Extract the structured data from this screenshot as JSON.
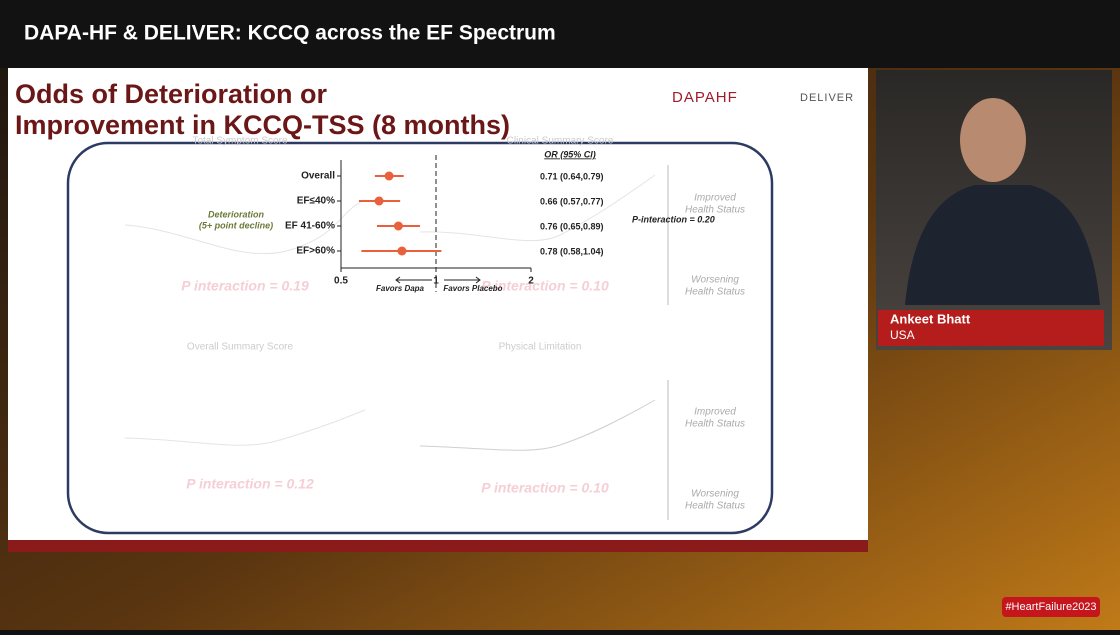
{
  "header": {
    "title": "DAPA-HF & DELIVER: KCCQ across the EF Spectrum"
  },
  "slide": {
    "title_lines": [
      "Odds of Deterioration or",
      "Improvement in KCCQ-TSS (8 months)"
    ],
    "logos": [
      "DAPAHF",
      "DELIVER"
    ],
    "background_panels": {
      "titles": [
        "Total Symptom Score",
        "Clinical Summary Score",
        "Overall Summary Score",
        "Physical Limitation"
      ],
      "improved": [
        "Improved",
        "Health Status"
      ],
      "worsening": [
        "Worsening",
        "Health Status"
      ],
      "p_values": [
        "P interaction = 0.19",
        "P interaction = 0.10",
        "P interaction = 0.12",
        "P interaction = 0.10"
      ]
    },
    "deterioration_lines": [
      "Deterioration",
      "(5+ point decline)"
    ],
    "p_interaction": "P-interaction = 0.20",
    "forest": {
      "type": "forest",
      "ci_header": "OR (95% CI)",
      "color": "#e8603c",
      "log_scale": true,
      "xlim": [
        0.5,
        2
      ],
      "xticks": [
        0.5,
        1,
        2
      ],
      "reference": 1,
      "left_label": "Favors Dapa",
      "right_label": "Favors Placebo",
      "rows": [
        {
          "label": "Overall",
          "or": 0.71,
          "lo": 0.64,
          "hi": 0.79,
          "ci_label": "0.71 (0.64,0.79)"
        },
        {
          "label": "EF≤40%",
          "or": 0.66,
          "lo": 0.57,
          "hi": 0.77,
          "ci_label": "0.66 (0.57,0.77)"
        },
        {
          "label": "EF 41-60%",
          "or": 0.76,
          "lo": 0.65,
          "hi": 0.89,
          "ci_label": "0.76 (0.65,0.89)"
        },
        {
          "label": "EF>60%",
          "or": 0.78,
          "lo": 0.58,
          "hi": 1.04,
          "ci_label": "0.78 (0.58,1.04)"
        }
      ]
    }
  },
  "speaker": {
    "name": "Ankeet Bhatt",
    "country": "USA"
  },
  "event": {
    "hashtag": "#HeartFailure2023"
  }
}
